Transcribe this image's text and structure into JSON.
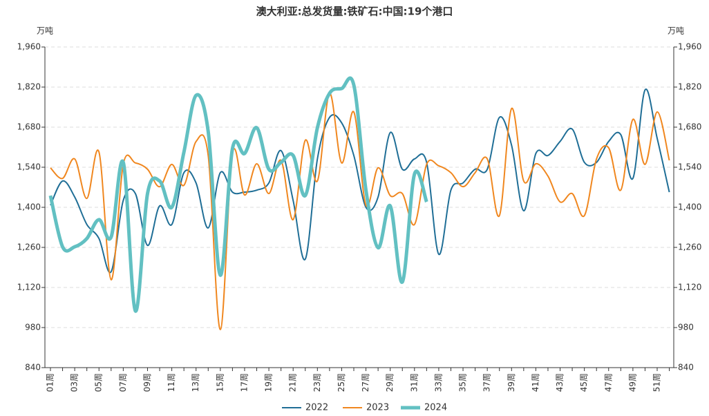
{
  "chart_data": {
    "type": "line",
    "title": "澳大利亚:总发货量:铁矿石:中国:19个港口",
    "ylabel": "万吨",
    "y2label": "万吨",
    "categories": [
      "01周",
      null,
      "03周",
      null,
      "05周",
      null,
      "07周",
      null,
      "09周",
      null,
      "11周",
      null,
      "13周",
      null,
      "15周",
      null,
      "17周",
      null,
      "19周",
      null,
      "21周",
      null,
      "23周",
      null,
      "25周",
      null,
      "27周",
      null,
      "29周",
      null,
      "31周",
      null,
      "33周",
      null,
      "35周",
      null,
      "37周",
      null,
      "39周",
      null,
      "41周",
      null,
      "43周",
      null,
      "45周",
      null,
      "47周",
      null,
      "49周",
      null,
      "51周",
      null
    ],
    "series": [
      {
        "name": "2022",
        "color": "#1f6e96",
        "width": 2,
        "values": [
          1407,
          1492,
          1436,
          1340,
          1291,
          1175,
          1424,
          1448,
          1267,
          1405,
          1340,
          1521,
          1485,
          1328,
          1521,
          1453,
          1453,
          1460,
          1485,
          1598,
          1424,
          1219,
          1569,
          1714,
          1695,
          1581,
          1400,
          1436,
          1661,
          1533,
          1569,
          1557,
          1236,
          1460,
          1485,
          1533,
          1533,
          1714,
          1617,
          1388,
          1588,
          1581,
          1630,
          1673,
          1557,
          1557,
          1630,
          1654,
          1501,
          1810,
          1641,
          1453
        ]
      },
      {
        "name": "2023",
        "color": "#f0871f",
        "width": 2,
        "values": [
          1538,
          1501,
          1569,
          1431,
          1593,
          1147,
          1550,
          1555,
          1533,
          1472,
          1550,
          1477,
          1630,
          1581,
          973,
          1588,
          1443,
          1552,
          1448,
          1564,
          1357,
          1634,
          1492,
          1798,
          1555,
          1733,
          1407,
          1538,
          1441,
          1448,
          1340,
          1550,
          1545,
          1521,
          1472,
          1521,
          1569,
          1371,
          1745,
          1492,
          1552,
          1509,
          1419,
          1448,
          1371,
          1569,
          1608,
          1460,
          1707,
          1550,
          1733,
          1564
        ]
      },
      {
        "name": "2024",
        "color": "#62c0c2",
        "width": 5,
        "values": [
          1441,
          1262,
          1262,
          1291,
          1357,
          1296,
          1557,
          1038,
          1448,
          1492,
          1400,
          1593,
          1791,
          1665,
          1163,
          1605,
          1588,
          1678,
          1533,
          1557,
          1581,
          1441,
          1678,
          1798,
          1815,
          1827,
          1460,
          1259,
          1405,
          1139,
          1516,
          1419,
          null,
          null,
          null,
          null,
          null,
          null,
          null,
          null,
          null,
          null,
          null,
          null,
          null,
          null,
          null,
          null,
          null,
          null,
          null,
          null
        ]
      }
    ],
    "ylim": [
      840,
      1960
    ],
    "yticks": [
      840,
      {
        "value": 980,
        "label": "980"
      },
      {
        "value": 1120,
        "label": "1,120"
      },
      {
        "value": 1260,
        "label": "1,260"
      },
      {
        "value": 1400,
        "label": "1,400"
      },
      {
        "value": 1540,
        "label": "1,540"
      },
      {
        "value": 1680,
        "label": "1,680"
      },
      {
        "value": 1820,
        "label": "1,820"
      },
      {
        "value": 1960,
        "label": "1,960"
      }
    ],
    "y2lim": [
      840,
      1960
    ],
    "y2ticks": [
      840,
      {
        "value": 980,
        "label": "980"
      },
      {
        "value": 1120,
        "label": "1,120"
      },
      {
        "value": 1260,
        "label": "1,260"
      },
      {
        "value": 1400,
        "label": "1,400"
      },
      {
        "value": 1540,
        "label": "1,540"
      },
      {
        "value": 1680,
        "label": "1,680"
      },
      {
        "value": 1820,
        "label": "1,820"
      },
      {
        "value": 1960,
        "label": "1,960"
      }
    ],
    "grid": true,
    "legend": "bottom"
  }
}
